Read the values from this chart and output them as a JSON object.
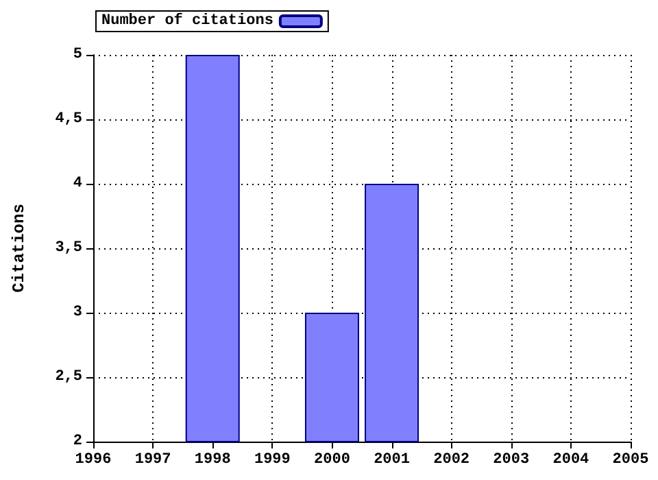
{
  "chart_data": {
    "type": "bar",
    "ylabel": "Citations",
    "x": [
      1998,
      2000,
      2001
    ],
    "series": [
      {
        "name": "Number of citations",
        "color": "#8080ff",
        "values": [
          5,
          3,
          4
        ]
      }
    ],
    "xlim": [
      1996,
      2005
    ],
    "xticks": [
      1996,
      1997,
      1998,
      1999,
      2000,
      2001,
      2002,
      2003,
      2004,
      2005
    ],
    "ylim": [
      2,
      5
    ],
    "yticks": [
      2,
      {
        "value": 2.5,
        "label": "2,5"
      },
      3,
      {
        "value": 3.5,
        "label": "3,5"
      },
      4,
      {
        "value": 4.5,
        "label": "4,5"
      },
      5
    ],
    "grid": true,
    "legend": "top left"
  }
}
